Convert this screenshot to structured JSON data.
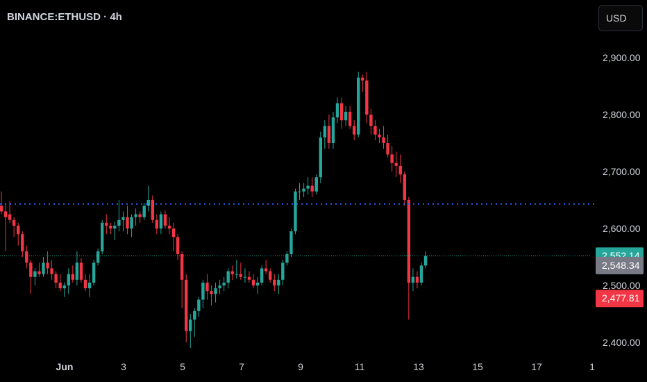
{
  "header": {
    "symbol": "BINANCE:ETHUSD · 4h"
  },
  "currency_button": {
    "label": "USD"
  },
  "colors": {
    "up": "#26a69a",
    "down": "#f23645",
    "dotted_line": "#2962ff",
    "current_line": "#26a69a",
    "gray_badge": "#787b86"
  },
  "price_axis": {
    "ticks": [
      {
        "value": 2900,
        "label": "2,900.00"
      },
      {
        "value": 2800,
        "label": "2,800.00"
      },
      {
        "value": 2700,
        "label": "2,700.00"
      },
      {
        "value": 2600,
        "label": "2,600.00"
      },
      {
        "value": 2500,
        "label": "2,500.00"
      },
      {
        "value": 2400,
        "label": "2,400.00"
      }
    ]
  },
  "time_axis": {
    "ticks": [
      {
        "label": "Jun",
        "bold": true
      },
      {
        "label": "3"
      },
      {
        "label": "5"
      },
      {
        "label": "7"
      },
      {
        "label": "9"
      },
      {
        "label": "11"
      },
      {
        "label": "13"
      },
      {
        "label": "15"
      },
      {
        "label": "17"
      },
      {
        "label": "1"
      }
    ]
  },
  "price_badges": [
    {
      "label": "2,552.14",
      "value": 2552.14,
      "color": "#26a69a"
    },
    {
      "label": "2,548.34",
      "value": 2535.5,
      "color": "#787b86"
    },
    {
      "label": "2,477.81",
      "value": 2477.81,
      "color": "#f23645"
    }
  ],
  "chart_data": {
    "type": "candlestick",
    "title": "BINANCE:ETHUSD · 4h",
    "ylim": [
      2380,
      2950
    ],
    "horizontal_line": 2643,
    "current_price": 2552.14,
    "candles": [
      [
        2640,
        2665,
        2625,
        2630
      ],
      [
        2630,
        2645,
        2560,
        2620
      ],
      [
        2625,
        2648,
        2610,
        2615
      ],
      [
        2615,
        2620,
        2585,
        2605
      ],
      [
        2605,
        2610,
        2570,
        2590
      ],
      [
        2590,
        2595,
        2550,
        2560
      ],
      [
        2560,
        2570,
        2530,
        2540
      ],
      [
        2540,
        2545,
        2485,
        2515
      ],
      [
        2515,
        2530,
        2500,
        2525
      ],
      [
        2525,
        2540,
        2515,
        2520
      ],
      [
        2520,
        2550,
        2515,
        2540
      ],
      [
        2540,
        2560,
        2520,
        2530
      ],
      [
        2530,
        2545,
        2510,
        2520
      ],
      [
        2520,
        2525,
        2495,
        2505
      ],
      [
        2505,
        2520,
        2490,
        2495
      ],
      [
        2495,
        2505,
        2480,
        2500
      ],
      [
        2500,
        2530,
        2485,
        2520
      ],
      [
        2520,
        2535,
        2505,
        2510
      ],
      [
        2510,
        2560,
        2500,
        2540
      ],
      [
        2540,
        2548,
        2505,
        2510
      ],
      [
        2510,
        2520,
        2490,
        2495
      ],
      [
        2495,
        2520,
        2480,
        2505
      ],
      [
        2505,
        2545,
        2500,
        2540
      ],
      [
        2540,
        2565,
        2535,
        2560
      ],
      [
        2560,
        2615,
        2555,
        2610
      ],
      [
        2610,
        2625,
        2590,
        2605
      ],
      [
        2605,
        2610,
        2590,
        2600
      ],
      [
        2600,
        2612,
        2580,
        2605
      ],
      [
        2605,
        2650,
        2595,
        2615
      ],
      [
        2615,
        2630,
        2595,
        2620
      ],
      [
        2620,
        2640,
        2590,
        2600
      ],
      [
        2600,
        2625,
        2585,
        2620
      ],
      [
        2620,
        2635,
        2605,
        2625
      ],
      [
        2625,
        2630,
        2610,
        2620
      ],
      [
        2620,
        2645,
        2615,
        2640
      ],
      [
        2640,
        2675,
        2630,
        2650
      ],
      [
        2650,
        2658,
        2610,
        2615
      ],
      [
        2615,
        2625,
        2590,
        2600
      ],
      [
        2600,
        2630,
        2590,
        2625
      ],
      [
        2625,
        2632,
        2600,
        2605
      ],
      [
        2605,
        2620,
        2590,
        2600
      ],
      [
        2600,
        2610,
        2560,
        2585
      ],
      [
        2585,
        2590,
        2545,
        2555
      ],
      [
        2555,
        2560,
        2460,
        2510
      ],
      [
        2510,
        2520,
        2400,
        2420
      ],
      [
        2420,
        2450,
        2390,
        2440
      ],
      [
        2440,
        2460,
        2410,
        2455
      ],
      [
        2455,
        2480,
        2445,
        2475
      ],
      [
        2475,
        2510,
        2460,
        2505
      ],
      [
        2505,
        2520,
        2475,
        2490
      ],
      [
        2490,
        2500,
        2465,
        2485
      ],
      [
        2485,
        2505,
        2470,
        2495
      ],
      [
        2495,
        2510,
        2485,
        2500
      ],
      [
        2500,
        2515,
        2490,
        2505
      ],
      [
        2505,
        2530,
        2495,
        2525
      ],
      [
        2525,
        2535,
        2510,
        2520
      ],
      [
        2520,
        2545,
        2512,
        2520
      ],
      [
        2520,
        2540,
        2510,
        2515
      ],
      [
        2515,
        2530,
        2505,
        2515
      ],
      [
        2515,
        2525,
        2505,
        2510
      ],
      [
        2510,
        2520,
        2495,
        2500
      ],
      [
        2500,
        2515,
        2485,
        2505
      ],
      [
        2505,
        2535,
        2500,
        2530
      ],
      [
        2530,
        2545,
        2520,
        2525
      ],
      [
        2525,
        2530,
        2505,
        2510
      ],
      [
        2510,
        2520,
        2490,
        2500
      ],
      [
        2500,
        2520,
        2485,
        2510
      ],
      [
        2510,
        2545,
        2500,
        2540
      ],
      [
        2540,
        2560,
        2535,
        2555
      ],
      [
        2555,
        2600,
        2550,
        2595
      ],
      [
        2595,
        2670,
        2590,
        2665
      ],
      [
        2665,
        2680,
        2650,
        2665
      ],
      [
        2665,
        2680,
        2655,
        2670
      ],
      [
        2670,
        2690,
        2660,
        2675
      ],
      [
        2675,
        2690,
        2655,
        2665
      ],
      [
        2665,
        2695,
        2660,
        2690
      ],
      [
        2690,
        2770,
        2680,
        2760
      ],
      [
        2760,
        2790,
        2740,
        2780
      ],
      [
        2780,
        2800,
        2740,
        2750
      ],
      [
        2750,
        2805,
        2740,
        2795
      ],
      [
        2795,
        2830,
        2785,
        2820
      ],
      [
        2820,
        2830,
        2775,
        2790
      ],
      [
        2790,
        2815,
        2780,
        2805
      ],
      [
        2805,
        2815,
        2775,
        2780
      ],
      [
        2780,
        2790,
        2755,
        2765
      ],
      [
        2765,
        2875,
        2760,
        2865
      ],
      [
        2865,
        2870,
        2840,
        2860
      ],
      [
        2860,
        2875,
        2785,
        2800
      ],
      [
        2800,
        2810,
        2765,
        2780
      ],
      [
        2780,
        2790,
        2755,
        2765
      ],
      [
        2765,
        2775,
        2750,
        2760
      ],
      [
        2760,
        2780,
        2740,
        2750
      ],
      [
        2750,
        2765,
        2725,
        2730
      ],
      [
        2730,
        2745,
        2700,
        2715
      ],
      [
        2715,
        2735,
        2690,
        2710
      ],
      [
        2710,
        2730,
        2680,
        2695
      ],
      [
        2695,
        2700,
        2640,
        2650
      ],
      [
        2650,
        2655,
        2440,
        2505
      ],
      [
        2505,
        2530,
        2490,
        2515
      ],
      [
        2515,
        2525,
        2495,
        2505
      ],
      [
        2505,
        2540,
        2500,
        2535
      ],
      [
        2535,
        2560,
        2530,
        2552
      ]
    ]
  }
}
